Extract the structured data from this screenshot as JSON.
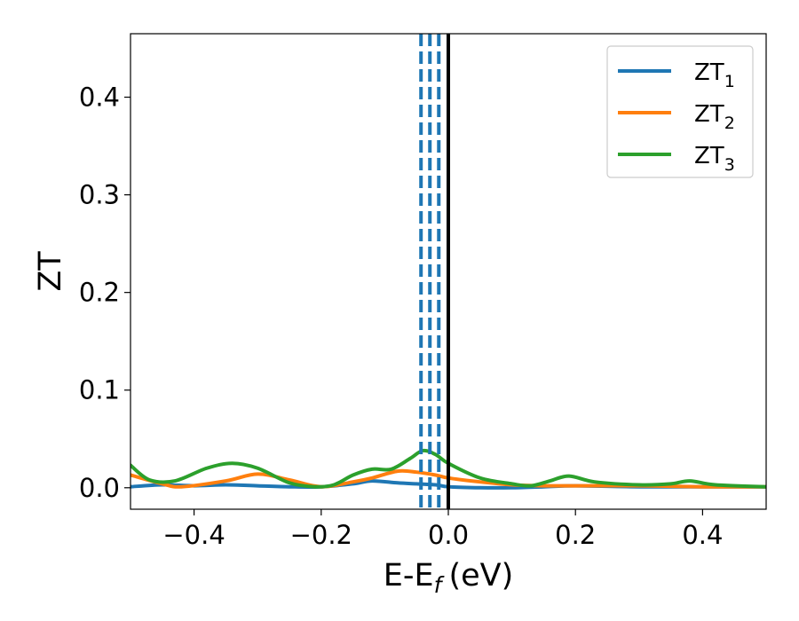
{
  "chart_data": {
    "type": "line",
    "xlabel": "E-E",
    "xlabel_sub": "f",
    "xlabel_unit": "(eV)",
    "ylabel": "ZT",
    "xlim": [
      -0.5,
      0.5
    ],
    "ylim": [
      -0.022,
      0.465
    ],
    "xticks": [
      -0.4,
      -0.2,
      0.0,
      0.2,
      0.4
    ],
    "xtick_labels": [
      "−0.4",
      "−0.2",
      "0.0",
      "0.2",
      "0.4"
    ],
    "yticks": [
      0.0,
      0.1,
      0.2,
      0.3,
      0.4
    ],
    "ytick_labels": [
      "0.0",
      "0.1",
      "0.2",
      "0.3",
      "0.4"
    ],
    "grid": false,
    "legend_position": "top-right",
    "series": [
      {
        "name": "ZT",
        "name_sub": "1",
        "color": "#1f77b4",
        "x": [
          -0.5,
          -0.45,
          -0.4,
          -0.35,
          -0.3,
          -0.25,
          -0.2,
          -0.15,
          -0.12,
          -0.08,
          -0.05,
          -0.02,
          0.0,
          0.05,
          0.1,
          0.15,
          0.2,
          0.3,
          0.4,
          0.5
        ],
        "y": [
          0.001,
          0.003,
          0.002,
          0.003,
          0.002,
          0.001,
          0.001,
          0.004,
          0.007,
          0.005,
          0.004,
          0.003,
          0.001,
          0.0,
          0.0,
          0.001,
          0.002,
          0.001,
          0.001,
          0.001
        ]
      },
      {
        "name": "ZT",
        "name_sub": "2",
        "color": "#ff7f0e",
        "x": [
          -0.5,
          -0.45,
          -0.42,
          -0.35,
          -0.3,
          -0.25,
          -0.2,
          -0.15,
          -0.12,
          -0.08,
          -0.05,
          -0.02,
          0.0,
          0.05,
          0.1,
          0.15,
          0.2,
          0.3,
          0.4,
          0.5
        ],
        "y": [
          0.013,
          0.004,
          0.001,
          0.007,
          0.014,
          0.008,
          0.001,
          0.006,
          0.01,
          0.017,
          0.016,
          0.013,
          0.01,
          0.006,
          0.003,
          0.002,
          0.002,
          0.002,
          0.001,
          0.001
        ]
      },
      {
        "name": "ZT",
        "name_sub": "3",
        "color": "#2ca02c",
        "x": [
          -0.5,
          -0.47,
          -0.43,
          -0.38,
          -0.34,
          -0.3,
          -0.25,
          -0.21,
          -0.18,
          -0.15,
          -0.12,
          -0.09,
          -0.06,
          -0.04,
          -0.02,
          0.0,
          0.05,
          0.1,
          0.13,
          0.16,
          0.19,
          0.23,
          0.3,
          0.35,
          0.38,
          0.42,
          0.5
        ],
        "y": [
          0.023,
          0.008,
          0.007,
          0.02,
          0.025,
          0.02,
          0.005,
          0.001,
          0.003,
          0.013,
          0.019,
          0.019,
          0.03,
          0.038,
          0.034,
          0.025,
          0.01,
          0.004,
          0.002,
          0.007,
          0.012,
          0.006,
          0.003,
          0.004,
          0.007,
          0.003,
          0.001
        ]
      }
    ],
    "vlines": [
      {
        "x": -0.043,
        "style": "dashed",
        "color": "#1f77b4"
      },
      {
        "x": -0.029,
        "style": "dashed",
        "color": "#1f77b4"
      },
      {
        "x": -0.015,
        "style": "dashed",
        "color": "#1f77b4"
      },
      {
        "x": 0.0,
        "style": "solid",
        "color": "#000000"
      }
    ]
  }
}
